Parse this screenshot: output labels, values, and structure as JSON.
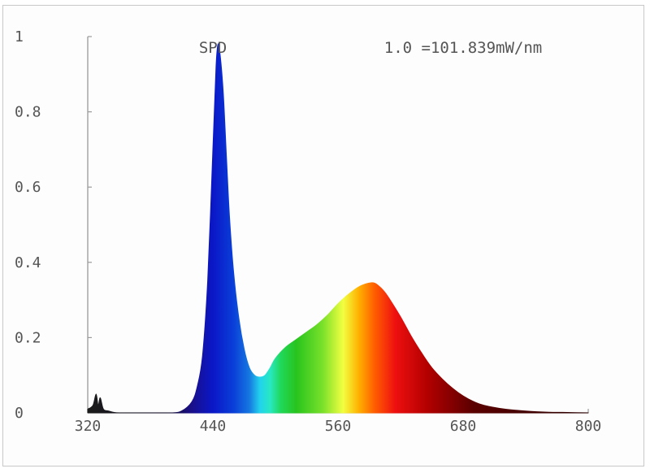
{
  "chart_data": {
    "type": "area",
    "title": "SPD",
    "annotation": "1.0 =101.839mW/nm",
    "xlabel": "",
    "ylabel": "",
    "xlim": [
      320,
      800
    ],
    "ylim": [
      0,
      1
    ],
    "x_ticks": [
      "320",
      "440",
      "560",
      "680",
      "800"
    ],
    "y_ticks": [
      "0",
      "0.2",
      "0.4",
      "0.6",
      "0.8",
      "1"
    ],
    "fill": "visible-spectrum color gradient by wavelength",
    "series": [
      {
        "x": [
          320,
          325,
          328,
          330,
          332,
          335,
          340,
          350,
          380,
          400,
          410,
          420,
          425,
          430,
          435,
          440,
          443,
          445,
          447,
          450,
          453,
          456,
          460,
          465,
          470,
          475,
          480,
          485,
          490,
          495,
          500,
          510,
          520,
          530,
          540,
          550,
          560,
          570,
          580,
          590,
          595,
          600,
          605,
          610,
          620,
          630,
          640,
          650,
          660,
          670,
          680,
          690,
          700,
          720,
          740,
          760,
          780,
          800
        ],
        "y": [
          0.01,
          0.02,
          0.05,
          0.02,
          0.04,
          0.01,
          0.005,
          0.0,
          0.0,
          0.0,
          0.005,
          0.03,
          0.07,
          0.15,
          0.35,
          0.7,
          0.92,
          0.98,
          0.95,
          0.85,
          0.68,
          0.52,
          0.37,
          0.25,
          0.17,
          0.12,
          0.1,
          0.095,
          0.1,
          0.12,
          0.145,
          0.175,
          0.195,
          0.215,
          0.235,
          0.26,
          0.29,
          0.315,
          0.335,
          0.345,
          0.345,
          0.335,
          0.32,
          0.3,
          0.255,
          0.205,
          0.16,
          0.12,
          0.09,
          0.065,
          0.045,
          0.03,
          0.02,
          0.01,
          0.005,
          0.002,
          0.001,
          0.0
        ]
      }
    ]
  }
}
